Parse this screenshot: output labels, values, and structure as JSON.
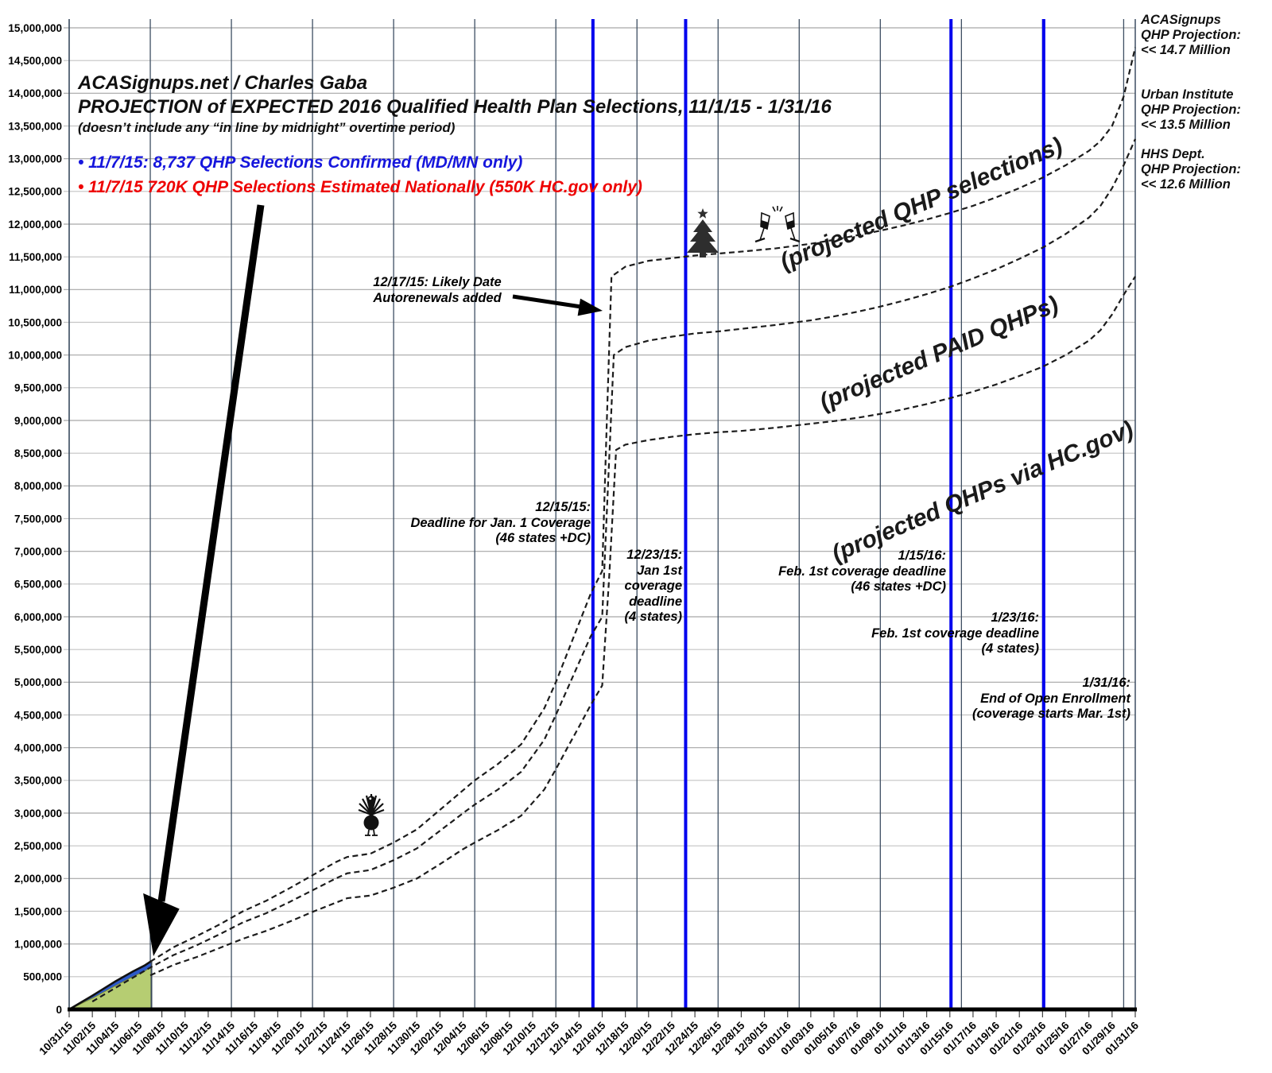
{
  "header": {
    "line1": "ACASignups.net / Charles Gaba",
    "line2": "PROJECTION of EXPECTED 2016 Qualified Health Plan Selections, 11/1/15 - 1/31/16",
    "line3": "(doesn’t include any “in line by midnight” overtime period)",
    "bullet_blue": "• 11/7/15: 8,737 QHP Selections Confirmed (MD/MN only)",
    "bullet_red": "• 11/7/15 720K QHP Selections Estimated Nationally (550K HC.gov only)"
  },
  "right_labels": [
    {
      "lines": [
        "ACASignups",
        "QHP Projection:",
        "<< 14.7 Million"
      ]
    },
    {
      "lines": [
        "Urban Institute",
        "QHP Projection:",
        "<< 13.5 Million"
      ]
    },
    {
      "lines": [
        "HHS Dept.",
        "QHP Projection:",
        "<< 12.6 Million"
      ]
    }
  ],
  "annotations": {
    "autorenewals": {
      "lines": [
        "12/17/15: Likely Date",
        "Autorenewals added"
      ]
    },
    "dec15": {
      "lines": [
        "12/15/15:",
        "Deadline for Jan. 1 Coverage",
        "(46 states +DC)"
      ]
    },
    "dec23": {
      "lines": [
        "12/23/15:",
        "Jan 1st",
        "coverage",
        "deadline",
        "(4 states)"
      ]
    },
    "jan15": {
      "lines": [
        "1/15/16:",
        "Feb. 1st coverage deadline",
        "(46 states +DC)"
      ]
    },
    "jan23": {
      "lines": [
        "1/23/16:",
        "Feb. 1st coverage deadline",
        "(4 states)"
      ]
    },
    "jan31": {
      "lines": [
        "1/31/16:",
        "End of Open Enrollment",
        "(coverage starts Mar. 1st)"
      ]
    }
  },
  "curve_labels": {
    "selections": "(projected QHP selections)",
    "paid": "(projected PAID QHPs)",
    "hcgov": "(projected QHPs via HC.gov)"
  },
  "colors": {
    "event_line_blue": "#0000ee",
    "bullet_blue": "#1616dd",
    "bullet_red": "#ee0000",
    "actual_green": "#b6cd72",
    "actual_blue": "#2d59c8",
    "grid_vertical": "#3e4f63",
    "grid_horizontal_major": "#a6a6a6",
    "grid_horizontal_minor": "#c4c4c4",
    "curve": "#1c1c1c"
  },
  "chart_data": {
    "type": "line",
    "title": "PROJECTION of EXPECTED 2016 Qualified Health Plan Selections, 11/1/15 - 1/31/16",
    "x_range": [
      "10/31/15",
      "01/31/16"
    ],
    "x_tick_labels": [
      "10/31/15",
      "11/02/15",
      "11/04/15",
      "11/06/15",
      "11/08/15",
      "11/10/15",
      "11/12/15",
      "11/14/15",
      "11/16/15",
      "11/18/15",
      "11/20/15",
      "11/22/15",
      "11/24/15",
      "11/26/15",
      "11/28/15",
      "11/30/15",
      "12/02/15",
      "12/04/15",
      "12/06/15",
      "12/08/15",
      "12/10/15",
      "12/12/15",
      "12/14/15",
      "12/16/15",
      "12/18/15",
      "12/20/15",
      "12/22/15",
      "12/24/15",
      "12/26/15",
      "12/28/15",
      "12/30/15",
      "01/01/16",
      "01/03/16",
      "01/05/16",
      "01/07/16",
      "01/09/16",
      "01/11/16",
      "01/13/16",
      "01/15/16",
      "01/17/16",
      "01/19/16",
      "01/21/16",
      "01/23/16",
      "01/25/16",
      "01/27/16",
      "01/29/16",
      "01/31/16"
    ],
    "ylim": [
      0,
      15000000
    ],
    "y_tick_step": 500000,
    "grid": "vertical weekly (Saturdays), horizontal every 500,000",
    "weekly_gridline_days": [
      0,
      7,
      14,
      21,
      28,
      35,
      42,
      49,
      56,
      63,
      70,
      77,
      84,
      91
    ],
    "series": [
      {
        "name": "projected QHP selections",
        "style": "dashed",
        "end_value": 14700000,
        "points": [
          [
            7,
            730000
          ],
          [
            9,
            950000
          ],
          [
            11,
            1120000
          ],
          [
            13,
            1300000
          ],
          [
            15,
            1500000
          ],
          [
            17,
            1660000
          ],
          [
            19,
            1850000
          ],
          [
            21,
            2050000
          ],
          [
            23,
            2250000
          ],
          [
            24,
            2330000
          ],
          [
            26,
            2380000
          ],
          [
            28,
            2550000
          ],
          [
            30,
            2750000
          ],
          [
            32,
            3050000
          ],
          [
            34,
            3350000
          ],
          [
            35,
            3500000
          ],
          [
            37,
            3750000
          ],
          [
            39,
            4050000
          ],
          [
            41,
            4600000
          ],
          [
            42,
            5000000
          ],
          [
            43,
            5450000
          ],
          [
            44,
            5900000
          ],
          [
            45,
            6350000
          ],
          [
            46,
            6700000
          ],
          [
            46.4,
            9000000
          ],
          [
            46.8,
            11200000
          ],
          [
            48,
            11350000
          ],
          [
            50,
            11440000
          ],
          [
            52,
            11480000
          ],
          [
            54,
            11520000
          ],
          [
            56,
            11550000
          ],
          [
            58,
            11580000
          ],
          [
            61,
            11630000
          ],
          [
            64,
            11700000
          ],
          [
            66,
            11760000
          ],
          [
            68,
            11830000
          ],
          [
            70,
            11900000
          ],
          [
            72,
            11980000
          ],
          [
            74,
            12070000
          ],
          [
            76,
            12170000
          ],
          [
            78,
            12280000
          ],
          [
            80,
            12410000
          ],
          [
            82,
            12550000
          ],
          [
            84,
            12710000
          ],
          [
            86,
            12900000
          ],
          [
            88,
            13120000
          ],
          [
            89,
            13270000
          ],
          [
            90,
            13500000
          ],
          [
            91,
            13950000
          ],
          [
            92,
            14700000
          ]
        ]
      },
      {
        "name": "projected PAID QHPs",
        "style": "dashed",
        "end_value": 13300000,
        "points": [
          [
            2,
            120000
          ],
          [
            4,
            330000
          ],
          [
            7,
            640000
          ],
          [
            9,
            830000
          ],
          [
            11,
            980000
          ],
          [
            13,
            1150000
          ],
          [
            15,
            1330000
          ],
          [
            17,
            1470000
          ],
          [
            19,
            1640000
          ],
          [
            21,
            1820000
          ],
          [
            23,
            2000000
          ],
          [
            24,
            2080000
          ],
          [
            26,
            2130000
          ],
          [
            28,
            2280000
          ],
          [
            30,
            2460000
          ],
          [
            32,
            2730000
          ],
          [
            34,
            3000000
          ],
          [
            35,
            3130000
          ],
          [
            37,
            3360000
          ],
          [
            39,
            3630000
          ],
          [
            41,
            4120000
          ],
          [
            42,
            4500000
          ],
          [
            43,
            4900000
          ],
          [
            44,
            5300000
          ],
          [
            45,
            5700000
          ],
          [
            46,
            6000000
          ],
          [
            46.5,
            8000000
          ],
          [
            47,
            10000000
          ],
          [
            48,
            10120000
          ],
          [
            50,
            10220000
          ],
          [
            52,
            10280000
          ],
          [
            54,
            10330000
          ],
          [
            56,
            10360000
          ],
          [
            58,
            10400000
          ],
          [
            61,
            10460000
          ],
          [
            64,
            10530000
          ],
          [
            66,
            10590000
          ],
          [
            68,
            10660000
          ],
          [
            70,
            10740000
          ],
          [
            72,
            10830000
          ],
          [
            74,
            10930000
          ],
          [
            76,
            11040000
          ],
          [
            78,
            11170000
          ],
          [
            80,
            11310000
          ],
          [
            82,
            11470000
          ],
          [
            84,
            11640000
          ],
          [
            86,
            11850000
          ],
          [
            88,
            12100000
          ],
          [
            89,
            12280000
          ],
          [
            90,
            12550000
          ],
          [
            91,
            12900000
          ],
          [
            92,
            13300000
          ]
        ]
      },
      {
        "name": "projected QHPs via HC.gov",
        "style": "dashed",
        "end_value": 11200000,
        "points": [
          [
            7,
            520000
          ],
          [
            9,
            680000
          ],
          [
            11,
            800000
          ],
          [
            13,
            940000
          ],
          [
            15,
            1080000
          ],
          [
            17,
            1200000
          ],
          [
            19,
            1340000
          ],
          [
            21,
            1490000
          ],
          [
            23,
            1630000
          ],
          [
            24,
            1700000
          ],
          [
            26,
            1740000
          ],
          [
            28,
            1860000
          ],
          [
            30,
            2000000
          ],
          [
            32,
            2220000
          ],
          [
            34,
            2450000
          ],
          [
            35,
            2550000
          ],
          [
            37,
            2740000
          ],
          [
            39,
            2960000
          ],
          [
            41,
            3360000
          ],
          [
            42,
            3670000
          ],
          [
            43,
            4000000
          ],
          [
            44,
            4320000
          ],
          [
            45,
            4650000
          ],
          [
            46,
            4950000
          ],
          [
            46.6,
            6600000
          ],
          [
            47.2,
            8550000
          ],
          [
            48,
            8630000
          ],
          [
            50,
            8700000
          ],
          [
            52,
            8750000
          ],
          [
            54,
            8790000
          ],
          [
            56,
            8820000
          ],
          [
            58,
            8840000
          ],
          [
            61,
            8890000
          ],
          [
            64,
            8950000
          ],
          [
            66,
            8990000
          ],
          [
            68,
            9040000
          ],
          [
            70,
            9100000
          ],
          [
            72,
            9170000
          ],
          [
            74,
            9250000
          ],
          [
            76,
            9340000
          ],
          [
            78,
            9440000
          ],
          [
            80,
            9550000
          ],
          [
            82,
            9680000
          ],
          [
            84,
            9820000
          ],
          [
            86,
            10000000
          ],
          [
            88,
            10220000
          ],
          [
            89,
            10380000
          ],
          [
            90,
            10620000
          ],
          [
            91,
            10920000
          ],
          [
            92,
            11200000
          ]
        ]
      }
    ],
    "actuals": {
      "as_of": "11/7/15",
      "estimated_total_national": 720000,
      "hcgov_only": 550000,
      "confirmed_md_mn": 8737,
      "total_top_edge": [
        [
          0,
          0
        ],
        [
          2,
          210000
        ],
        [
          4,
          430000
        ],
        [
          5.5,
          580000
        ],
        [
          6.5,
          670000
        ],
        [
          7.1,
          740000
        ]
      ],
      "hcgov_top_edge": [
        [
          0,
          0
        ],
        [
          2,
          170000
        ],
        [
          4,
          360000
        ],
        [
          5.5,
          500000
        ],
        [
          6.5,
          580000
        ],
        [
          7.1,
          655000
        ]
      ]
    },
    "event_lines": [
      {
        "label": "12/15/15: Deadline for Jan. 1 Coverage (46 states +DC)",
        "day": 45.2
      },
      {
        "label": "12/23/15: Jan 1st coverage deadline (4 states)",
        "day": 53.2
      },
      {
        "label": "1/15/16: Feb. 1st coverage deadline (46 states +DC)",
        "day": 76.1
      },
      {
        "label": "1/23/16: Feb. 1st coverage deadline (4 states)",
        "day": 84.1
      }
    ],
    "reference_levels": [
      {
        "label": "ACASignups QHP Projection",
        "value": 14700000
      },
      {
        "label": "Urban Institute QHP Projection",
        "value": 13500000
      },
      {
        "label": "HHS Dept. QHP Projection",
        "value": 12600000
      }
    ]
  }
}
